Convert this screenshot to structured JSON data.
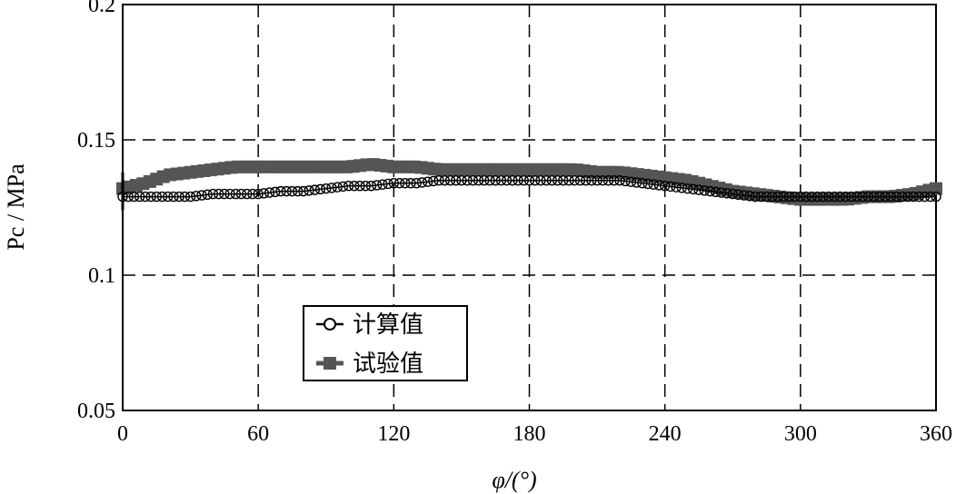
{
  "chart_data": {
    "type": "line",
    "title": "",
    "xlabel": "φ/(°)",
    "ylabel": "Pc / MPa",
    "xlim": [
      0,
      360
    ],
    "ylim": [
      0.05,
      0.2
    ],
    "xticks": [
      0,
      60,
      120,
      180,
      240,
      300,
      360
    ],
    "yticks": [
      0.05,
      0.1,
      0.15,
      0.2
    ],
    "xtick_labels": [
      "0",
      "60",
      "120",
      "180",
      "240",
      "300",
      "360"
    ],
    "ytick_labels": [
      "0.05",
      "0.1",
      "0.15",
      "0.2"
    ],
    "grid": true,
    "legend_position": "lower-left",
    "series": [
      {
        "name": "计算值",
        "marker": "open-circle",
        "color": "#000000",
        "x": [
          0,
          10,
          20,
          30,
          40,
          50,
          60,
          70,
          80,
          90,
          100,
          110,
          120,
          130,
          140,
          150,
          160,
          170,
          180,
          190,
          200,
          210,
          220,
          230,
          240,
          250,
          260,
          270,
          280,
          290,
          300,
          310,
          320,
          330,
          340,
          350,
          360
        ],
        "values": [
          0.129,
          0.129,
          0.129,
          0.129,
          0.13,
          0.13,
          0.13,
          0.131,
          0.131,
          0.132,
          0.133,
          0.133,
          0.134,
          0.134,
          0.135,
          0.135,
          0.135,
          0.135,
          0.135,
          0.135,
          0.135,
          0.135,
          0.135,
          0.134,
          0.133,
          0.132,
          0.131,
          0.13,
          0.129,
          0.129,
          0.129,
          0.129,
          0.129,
          0.129,
          0.129,
          0.129,
          0.129
        ]
      },
      {
        "name": "试验值",
        "marker": "filled-square",
        "color": "#555555",
        "x": [
          0,
          10,
          20,
          30,
          40,
          50,
          60,
          70,
          80,
          90,
          100,
          110,
          120,
          130,
          140,
          150,
          160,
          170,
          180,
          190,
          200,
          210,
          220,
          230,
          240,
          250,
          260,
          270,
          280,
          290,
          300,
          310,
          320,
          330,
          340,
          350,
          360
        ],
        "values": [
          0.132,
          0.134,
          0.137,
          0.138,
          0.139,
          0.14,
          0.14,
          0.14,
          0.14,
          0.14,
          0.14,
          0.141,
          0.14,
          0.14,
          0.139,
          0.139,
          0.139,
          0.139,
          0.139,
          0.139,
          0.139,
          0.138,
          0.138,
          0.137,
          0.136,
          0.135,
          0.133,
          0.131,
          0.13,
          0.129,
          0.128,
          0.128,
          0.128,
          0.129,
          0.129,
          0.13,
          0.132
        ]
      }
    ]
  }
}
